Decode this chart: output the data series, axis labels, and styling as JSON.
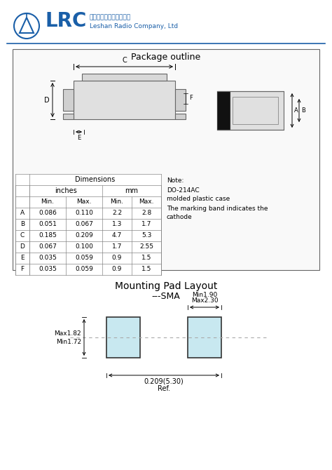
{
  "title_chinese": "乐山无线电股份有限公司",
  "title_english": "Leshan Radio Company, Ltd",
  "logo_color": "#1a5fa8",
  "section1_title": "Package outline",
  "table_rows": [
    [
      "A",
      "0.086",
      "0.110",
      "2.2",
      "2.8"
    ],
    [
      "B",
      "0.051",
      "0.067",
      "1.3",
      "1.7"
    ],
    [
      "C",
      "0.185",
      "0.209",
      "4.7",
      "5.3"
    ],
    [
      "D",
      "0.067",
      "0.100",
      "1.7",
      "2.55"
    ],
    [
      "E",
      "0.035",
      "0.059",
      "0.9",
      "1.5"
    ],
    [
      "F",
      "0.035",
      "0.059",
      "0.9",
      "1.5"
    ]
  ],
  "note_lines": [
    "Note:",
    "DO-214AC",
    "molded plastic case",
    "The marking band indicates the",
    "cathode"
  ],
  "section2_title": "Mounting Pad Layout",
  "section2_subtitle": "---SMA",
  "dim_label1": "Max2.30",
  "dim_label2": "Min1.90",
  "dim_label3": "Max1.82",
  "dim_label4": "Min1.72",
  "dim_label5": "0.209(5.30)",
  "dim_label6": "Ref.",
  "pad_fill": "#c8e8f0",
  "bg_color": "#ffffff"
}
